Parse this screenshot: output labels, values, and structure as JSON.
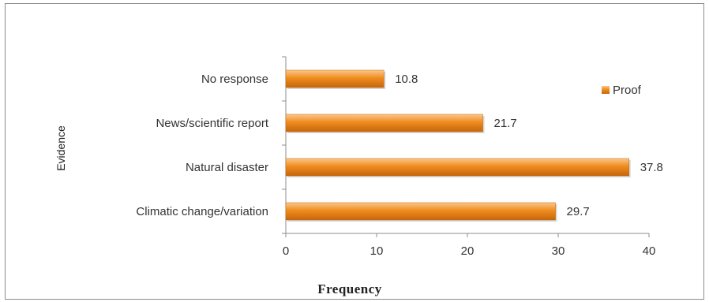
{
  "chart_data": {
    "type": "bar",
    "orientation": "horizontal",
    "categories": [
      "Climatic change/variation",
      "Natural disaster",
      "News/scientific report",
      "No response"
    ],
    "series": [
      {
        "name": "Proof",
        "values": [
          29.7,
          37.8,
          21.7,
          10.8
        ]
      }
    ],
    "data_labels": [
      "29.7",
      "37.8",
      "21.7",
      "10.8"
    ],
    "xlabel": "Frequency",
    "ylabel": "Evidence",
    "xlim": [
      0,
      40
    ],
    "xticks": [
      0,
      10,
      20,
      30,
      40
    ],
    "xtick_labels": [
      "0",
      "10",
      "20",
      "30",
      "40"
    ],
    "grid": false,
    "legend": "right",
    "colors": {
      "bar": "#f08c1e",
      "bar_light": "#fbc88a",
      "bar_dark": "#c4660c"
    }
  }
}
